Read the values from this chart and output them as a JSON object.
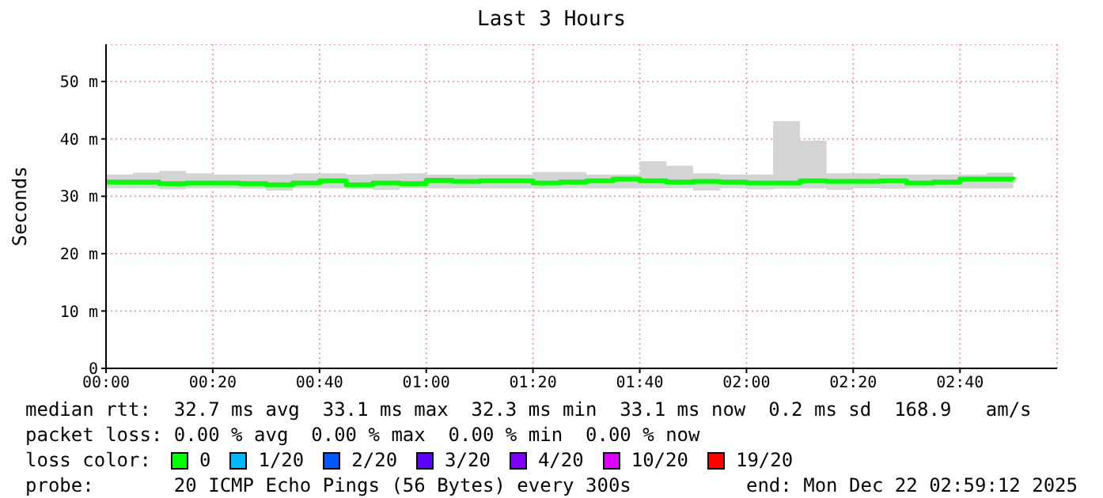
{
  "chart_data": {
    "type": "step",
    "title": "Last 3 Hours",
    "ylabel": "Seconds",
    "x": [
      0,
      0.0833,
      0.1667,
      0.25,
      0.3333,
      0.4167,
      0.5,
      0.5833,
      0.6667,
      0.75,
      0.8333,
      0.9167,
      1,
      1.0833,
      1.1667,
      1.25,
      1.3333,
      1.4167,
      1.5,
      1.5833,
      1.6667,
      1.75,
      1.8333,
      1.9167,
      2,
      2.0833,
      2.1667,
      2.25,
      2.3333,
      2.4167,
      2.5,
      2.5833,
      2.6667,
      2.75,
      2.8333
    ],
    "series": [
      {
        "color": "#00ff00",
        "values": [
          32.5,
          32.5,
          32.2,
          32.3,
          32.3,
          32.2,
          32.0,
          32.3,
          32.7,
          32.0,
          32.3,
          32.2,
          32.8,
          32.6,
          32.7,
          32.7,
          32.3,
          32.5,
          32.7,
          33.0,
          32.7,
          32.5,
          32.6,
          32.5,
          32.3,
          32.3,
          32.7,
          32.6,
          32.6,
          32.7,
          32.3,
          32.5,
          33.0,
          33.0,
          32.9
        ],
        "lower": [
          31.4,
          31.4,
          31.2,
          31.4,
          31.4,
          31.3,
          31.0,
          31.4,
          31.4,
          31.3,
          31.1,
          31.4,
          31.4,
          31.4,
          31.4,
          31.4,
          31.3,
          31.4,
          31.4,
          31.4,
          31.4,
          31.4,
          31.0,
          31.4,
          31.2,
          31.3,
          31.4,
          31.1,
          31.4,
          31.3,
          31.4,
          31.4,
          31.4,
          31.4,
          31.6
        ],
        "upper": [
          33.8,
          34.1,
          34.4,
          34.0,
          33.8,
          33.8,
          33.8,
          34.0,
          34.0,
          33.8,
          33.9,
          34.0,
          33.8,
          33.8,
          33.8,
          33.8,
          34.2,
          34.2,
          33.8,
          33.8,
          36.1,
          35.3,
          34.0,
          33.8,
          33.8,
          43.1,
          39.7,
          34.0,
          34.0,
          33.8,
          33.8,
          33.8,
          33.8,
          34.1,
          34.0
        ]
      }
    ],
    "xlim": [
      0,
      2.97
    ],
    "xticks": [
      {
        "value": 0,
        "label": "00:00"
      },
      {
        "value": 0.3333,
        "label": "00:20"
      },
      {
        "value": 0.6667,
        "label": "00:40"
      },
      {
        "value": 1,
        "label": "01:00"
      },
      {
        "value": 1.3333,
        "label": "01:20"
      },
      {
        "value": 1.6667,
        "label": "01:40"
      },
      {
        "value": 2,
        "label": "02:00"
      },
      {
        "value": 2.3333,
        "label": "02:20"
      },
      {
        "value": 2.6667,
        "label": "02:40"
      }
    ],
    "ylim": [
      0,
      56.5
    ],
    "yticks": [
      0,
      {
        "value": 10,
        "label": "10 m"
      },
      {
        "value": 20,
        "label": "20 m"
      },
      {
        "value": 30,
        "label": "30 m"
      },
      {
        "value": 40,
        "label": "40 m"
      },
      {
        "value": 50,
        "label": "50 m"
      }
    ],
    "grid": true,
    "annotations": [
      "median rtt:  32.7 ms avg  33.1 ms max  32.3 ms min  33.1 ms now  0.2 ms sd  168.9   am/s",
      "packet loss: 0.00 % avg  0.00 % max  0.00 % min  0.00 % now",
      "loss color:",
      "0",
      "1/20",
      "2/20",
      "3/20",
      "4/20",
      "10/20",
      "19/20",
      "probe:       20 ICMP Echo Pings (56 Bytes) every 300s",
      "end: Mon Dec 22 02:59:12 2025"
    ]
  }
}
